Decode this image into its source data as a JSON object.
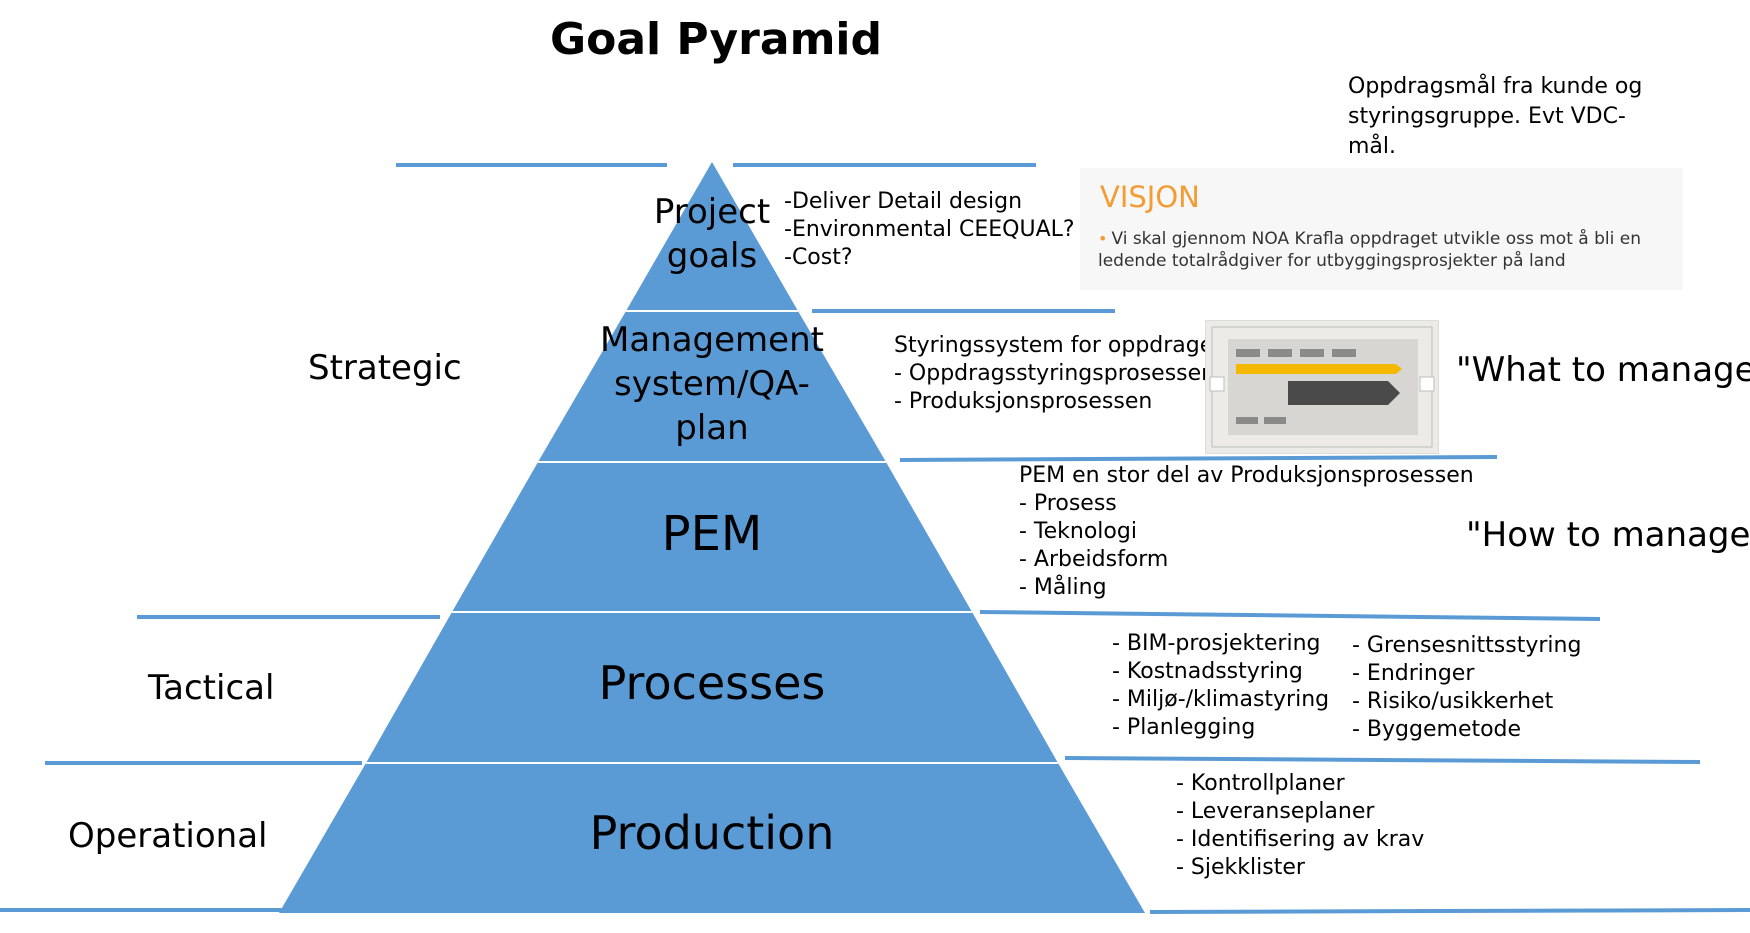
{
  "title": "Goal Pyramid",
  "colors": {
    "pyramid_fill": "#5b9bd5",
    "divider_line": "#5b9bd5",
    "tier_separator": "#ffffff",
    "visjon_accent": "#f39c33",
    "thumb_arrow": "#f5b800",
    "thumb_block": "#4a4a4a"
  },
  "levels": {
    "strategic": "Strategic",
    "tactical": "Tactical",
    "operational": "Operational"
  },
  "tiers": [
    {
      "label": "Project goals",
      "lines": [
        "Project",
        "goals"
      ]
    },
    {
      "label": "Management system/QA-plan",
      "lines": [
        "Management",
        "system/QA-",
        "plan"
      ]
    },
    {
      "label": "PEM",
      "lines": [
        "PEM"
      ]
    },
    {
      "label": "Processes",
      "lines": [
        "Processes"
      ]
    },
    {
      "label": "Production",
      "lines": [
        "Production"
      ]
    }
  ],
  "notes": {
    "project_goals": [
      "-Deliver Detail design",
      "-Environmental CEEQUAL?",
      "-Cost?"
    ],
    "client_goals": [
      "Oppdragsmål fra kunde og",
      "styringsgruppe. Evt VDC-",
      "mål."
    ],
    "management": [
      "Styringssystem for oppdraget",
      "- Oppdragsstyringsprosessen",
      "- Produksjonsprosessen"
    ],
    "pem": [
      "PEM en stor del av Produksjonsprosessen",
      "- Prosess",
      "- Teknologi",
      "- Arbeidsform",
      "- Måling"
    ],
    "processes_left": [
      "- BIM-prosjektering",
      "- Kostnadsstyring",
      "- Miljø-/klimastyring",
      "- Planlegging"
    ],
    "processes_right": [
      "- Grensesnittsstyring",
      "- Endringer",
      "- Risiko/usikkerhet",
      "- Byggemetode"
    ],
    "production": [
      "-  Kontrollplaner",
      "-  Leveranseplaner",
      "-  Identifisering av krav",
      "-  Sjekklister"
    ]
  },
  "visjon": {
    "title": "VISJON",
    "bullet": "•",
    "text": "Vi skal gjennom NOA Krafla oppdraget utvikle oss mot å bli en ledende totalrådgiver for utbyggingsprosjekter på land"
  },
  "quotes": {
    "what": "\"What to manage\"",
    "how": "\"How to manage\""
  }
}
